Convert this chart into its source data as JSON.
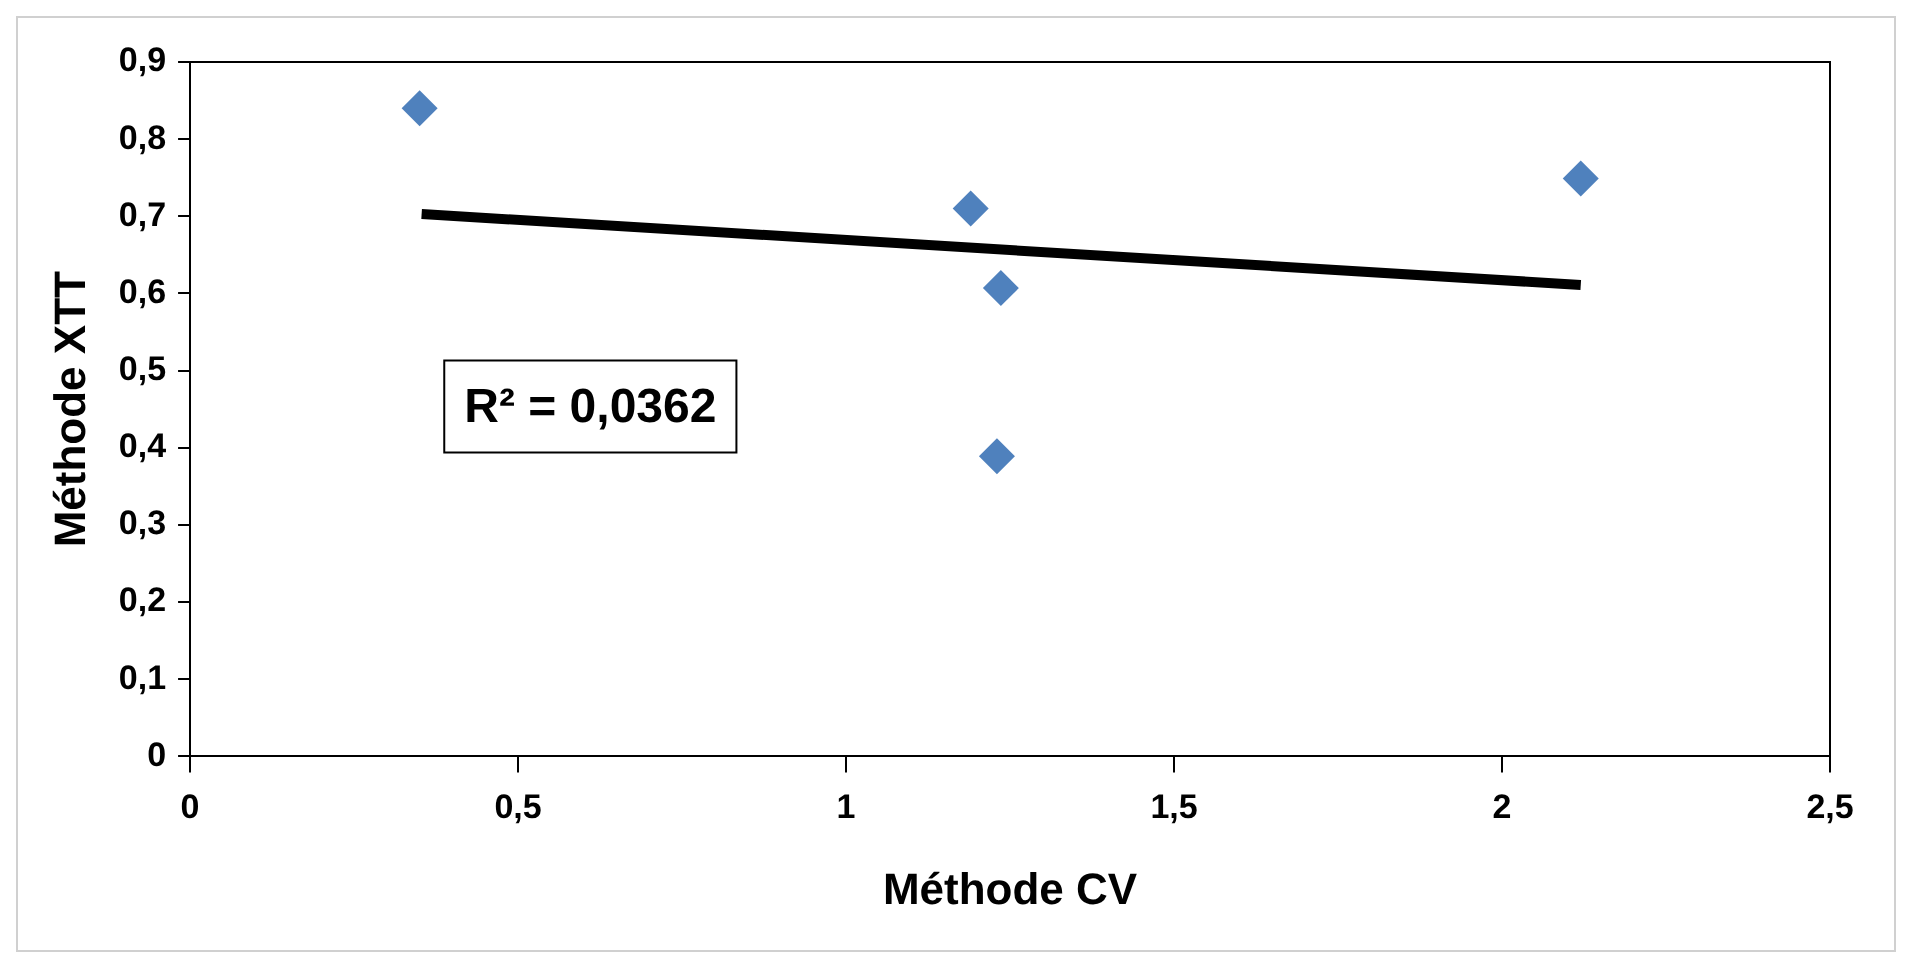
{
  "chart_data": {
    "type": "scatter",
    "xlabel": "Méthode CV",
    "ylabel": "Méthode XTT",
    "series": [
      {
        "color": "#4f81bd",
        "marker": "diamond",
        "x": [
          0.35,
          1.19,
          1.236,
          1.23,
          2.12
        ],
        "values": [
          0.84,
          0.71,
          0.607,
          0.389,
          0.749
        ]
      },
      {
        "type": "line",
        "color": "#000000",
        "marker": "none",
        "line_style": "solid",
        "x": [
          0.353,
          2.12
        ],
        "values": [
          0.703,
          0.611
        ]
      }
    ],
    "annotations": [
      "R² = 0,0362"
    ],
    "xlim": [
      0,
      2.5
    ],
    "xticks": [
      0,
      {
        "value": 0.5,
        "label": "0,5"
      },
      1,
      {
        "value": 1.5,
        "label": "1,5"
      },
      2,
      {
        "value": 2.5,
        "label": "2,5"
      }
    ],
    "ylim": [
      0,
      0.9
    ],
    "yticks": [
      0,
      {
        "value": 0.1,
        "label": "0,1"
      },
      {
        "value": 0.2,
        "label": "0,2"
      },
      {
        "value": 0.3,
        "label": "0,3"
      },
      {
        "value": 0.4,
        "label": "0,4"
      },
      {
        "value": 0.5,
        "label": "0,5"
      },
      {
        "value": 0.6,
        "label": "0,6"
      },
      {
        "value": 0.7,
        "label": "0,7"
      },
      {
        "value": 0.8,
        "label": "0,8"
      },
      {
        "value": 0.9,
        "label": "0,9"
      }
    ],
    "grid": false,
    "legend": false
  }
}
